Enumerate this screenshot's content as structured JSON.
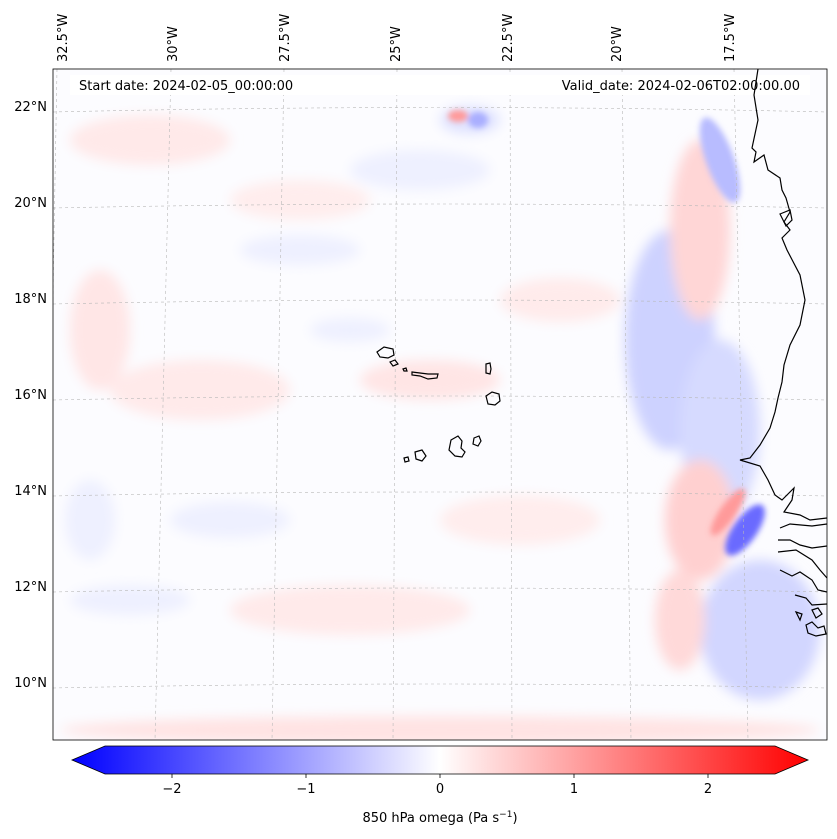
{
  "header": {
    "start_date": "Start date: 2024-02-05_00:00:00",
    "valid_date": "Valid_date: 2024-02-06T02:00:00.00"
  },
  "map": {
    "longitude_labels": [
      "32.5°W",
      "30°W",
      "27.5°W",
      "25°W",
      "22.5°W",
      "20°W",
      "17.5°W"
    ],
    "latitude_labels": [
      "22°N",
      "20°N",
      "18°N",
      "16°N",
      "14°N",
      "12°N",
      "10°N"
    ],
    "gridlines": true,
    "field": "850 hPa omega",
    "colors": {
      "negative": "#0000ff",
      "zero": "#ffffff",
      "positive": "#ff0000",
      "coastline": "#000000"
    }
  },
  "colorbar": {
    "ticks": [
      "−2",
      "−1",
      "0",
      "1",
      "2"
    ],
    "range": [
      -2.6,
      2.6
    ],
    "label_prefix": "850 hPa omega (Pa s",
    "label_exponent": "−1",
    "label_suffix": ")"
  }
}
